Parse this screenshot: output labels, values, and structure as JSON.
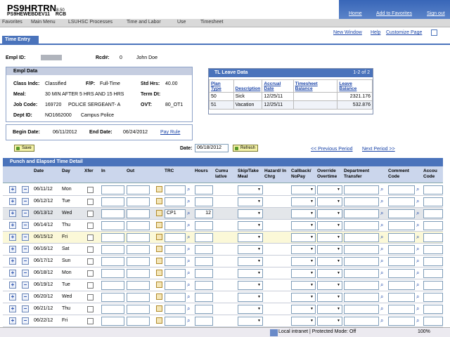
{
  "header": {
    "title": "PS9HRTRN",
    "version": "8.50",
    "db": "PS9HEWEBDEV11",
    "user": "RCB",
    "links": [
      "Home",
      "Add to Favorites",
      "Sign out"
    ]
  },
  "breadcrumb": [
    "Favorites",
    "Main Menu",
    "LSUHSC Processes",
    "Time and Labor",
    "Use",
    "Timesheet"
  ],
  "tab": "Time Entry",
  "page_links": [
    "New Window",
    "Help",
    "Customize Page"
  ],
  "empl": {
    "id_label": "Empl ID:",
    "id": "",
    "rcd_label": "Rcd#:",
    "rcd": "0",
    "name": "John Doe"
  },
  "empl_data": {
    "title": "Empl Data",
    "class_label": "Class Indc:",
    "class": "Classified",
    "fp_label": "F/P:",
    "fp": "Full-Time",
    "std_label": "Std Hrs:",
    "std": "40.00",
    "meal_label": "Meal:",
    "meal": "30 MIN AFTER 5 HRS AND 15 HRS",
    "term_label": "Term Dt:",
    "job_label": "Job Code:",
    "job": "169720",
    "job_desc": "POLICE SERGEANT- A",
    "ovt_label": "OVT:",
    "ovt": "80_OT1",
    "dept_label": "Dept ID:",
    "dept": "NO1662000",
    "dept_desc": "Campus Police"
  },
  "period": {
    "begin_label": "Begin Date:",
    "begin": "06/11/2012",
    "end_label": "End Date:",
    "end": "06/24/2012",
    "pay_rule": "Pay Rule"
  },
  "leave": {
    "title": "TL Leave Data",
    "range": "1-2 of 2",
    "headers": [
      "Plan Type",
      "Description",
      "Accrual Date",
      "Timesheet Balance",
      "Leave Balance"
    ],
    "rows": [
      [
        "50",
        "Sick",
        "12/25/11",
        "",
        "2321.176"
      ],
      [
        "51",
        "Vacation",
        "12/25/11",
        "",
        "532.876"
      ]
    ]
  },
  "toolbar": {
    "save": "Save",
    "date_label": "Date:",
    "date": "06/18/2012",
    "refresh": "Refresh",
    "prev": "<< Previous Period",
    "next": "Next Period >>"
  },
  "grid": {
    "title": "Punch and Elapsed Time Detail",
    "headers": [
      "Date",
      "Day",
      "Xfer",
      "In",
      "Out",
      "TRC",
      "Hours",
      "Cumu lative",
      "Skip/Take Meal",
      "Hazard/ In Chrg",
      "Callback/ NoPay",
      "Override Overtime",
      "Department Transfer",
      "Comment Code",
      "Accou Code"
    ],
    "rows": [
      {
        "date": "06/11/12",
        "day": "Mon",
        "trc": "",
        "hours": ""
      },
      {
        "date": "06/12/12",
        "day": "Tue",
        "trc": "",
        "hours": ""
      },
      {
        "date": "06/13/12",
        "day": "Wed",
        "trc": "CP1",
        "hours": "12"
      },
      {
        "date": "06/14/12",
        "day": "Thu",
        "trc": "",
        "hours": ""
      },
      {
        "date": "06/15/12",
        "day": "Fri",
        "trc": "",
        "hours": ""
      },
      {
        "date": "06/16/12",
        "day": "Sat",
        "trc": "",
        "hours": ""
      },
      {
        "date": "06/17/12",
        "day": "Sun",
        "trc": "",
        "hours": ""
      },
      {
        "date": "06/18/12",
        "day": "Mon",
        "trc": "",
        "hours": ""
      },
      {
        "date": "06/19/12",
        "day": "Tue",
        "trc": "",
        "hours": ""
      },
      {
        "date": "06/20/12",
        "day": "Wed",
        "trc": "",
        "hours": ""
      },
      {
        "date": "06/21/12",
        "day": "Thu",
        "trc": "",
        "hours": ""
      },
      {
        "date": "06/22/12",
        "day": "Fri",
        "trc": "",
        "hours": ""
      }
    ]
  },
  "status": {
    "zone": "Local intranet | Protected Mode: Off",
    "zoom": "100%"
  }
}
